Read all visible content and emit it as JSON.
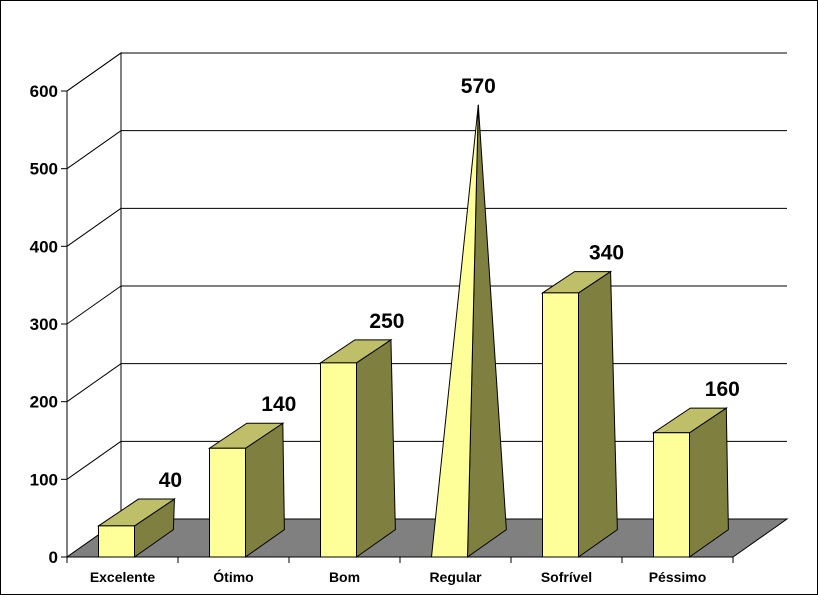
{
  "chart_data": {
    "type": "bar",
    "title": "",
    "xlabel": "",
    "ylabel": "",
    "categories": [
      "Excelente",
      "Ótimo",
      "Bom",
      "Regular",
      "Sofrível",
      "Péssimo"
    ],
    "values": [
      40,
      140,
      250,
      570,
      340,
      160
    ],
    "data_labels": [
      "40",
      "140",
      "250",
      "570",
      "340",
      "160"
    ],
    "ylim": [
      0,
      600
    ],
    "yticks": [
      0,
      100,
      200,
      300,
      400,
      500,
      600
    ],
    "ytick_labels": [
      "0",
      "100",
      "200",
      "300",
      "400",
      "500",
      "600"
    ],
    "grid": true,
    "legend": "none",
    "style": "3d-pyramid-column",
    "colors": {
      "bar_front": "#FFFF99",
      "bar_side": "#7F7F40",
      "bar_top": "#BFBF6A",
      "floor": "#808080",
      "grid": "#000000"
    }
  }
}
